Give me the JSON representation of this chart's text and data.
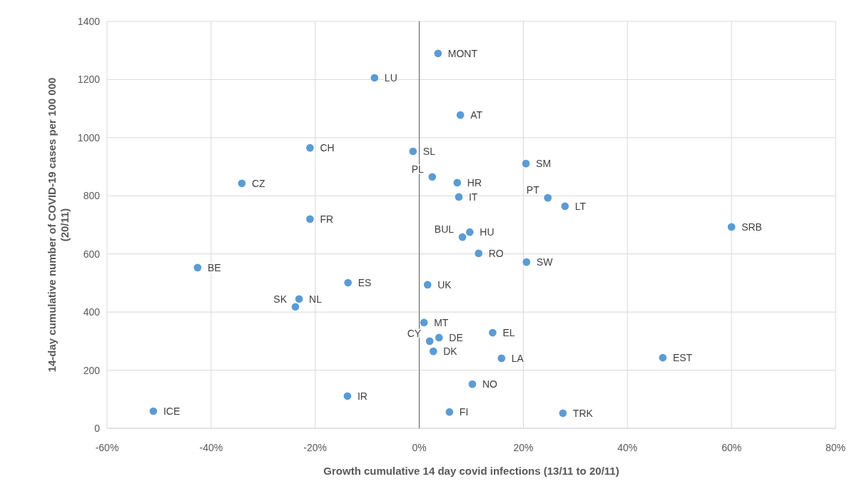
{
  "chart_data": {
    "type": "scatter",
    "xlabel": "Growth cumulative  14 day covid infections (13/11 to 20/11)",
    "ylabel": "14-day cumulative number of COVID-19 cases per 100 000 (20/11)",
    "x": [
      3.6,
      -8.6,
      7.9,
      -21.0,
      -1.2,
      20.5,
      7.3,
      2.5,
      -34.1,
      7.6,
      24.7,
      28.0,
      -21.0,
      60.0,
      9.7,
      8.3,
      11.4,
      20.6,
      -42.6,
      -13.7,
      1.6,
      -23.1,
      -23.8,
      0.9,
      3.8,
      2.0,
      14.1,
      2.7,
      15.8,
      46.8,
      10.2,
      -13.8,
      -51.1,
      5.8,
      27.6
    ],
    "series": [
      {
        "color": "#5b9bd5",
        "values": [
          1290,
          1206,
          1078,
          965,
          953,
          911,
          845,
          865,
          843,
          796,
          793,
          764,
          720,
          693,
          675,
          658,
          602,
          572,
          553,
          501,
          494,
          445,
          418,
          364,
          312,
          300,
          329,
          265,
          241,
          243,
          152,
          111,
          59,
          56,
          52
        ]
      }
    ],
    "annotations": [
      {
        "text": "MONT",
        "x": 3.6,
        "y": 1290
      },
      {
        "text": "LU",
        "x": -8.6,
        "y": 1206
      },
      {
        "text": "AT",
        "x": 7.9,
        "y": 1078
      },
      {
        "text": "CH",
        "x": -21.0,
        "y": 965
      },
      {
        "text": "SL",
        "x": -1.2,
        "y": 953
      },
      {
        "text": "SM",
        "x": 20.5,
        "y": 911
      },
      {
        "text": "HR",
        "x": 7.3,
        "y": 845
      },
      {
        "text": "PL",
        "x": 2.5,
        "y": 865
      },
      {
        "text": "CZ",
        "x": -34.1,
        "y": 843
      },
      {
        "text": "IT",
        "x": 7.6,
        "y": 796
      },
      {
        "text": "PT",
        "x": 24.7,
        "y": 793
      },
      {
        "text": "LT",
        "x": 28.0,
        "y": 764
      },
      {
        "text": "FR",
        "x": -21.0,
        "y": 720
      },
      {
        "text": "SRB",
        "x": 60.0,
        "y": 693
      },
      {
        "text": "HU",
        "x": 9.7,
        "y": 675
      },
      {
        "text": "BUL",
        "x": 8.3,
        "y": 658
      },
      {
        "text": "RO",
        "x": 11.4,
        "y": 602
      },
      {
        "text": "SW",
        "x": 20.6,
        "y": 572
      },
      {
        "text": "BE",
        "x": -42.6,
        "y": 553
      },
      {
        "text": "ES",
        "x": -13.7,
        "y": 501
      },
      {
        "text": "UK",
        "x": 1.6,
        "y": 494
      },
      {
        "text": "NL",
        "x": -23.1,
        "y": 445
      },
      {
        "text": "SK",
        "x": -23.8,
        "y": 418
      },
      {
        "text": "MT",
        "x": 0.9,
        "y": 364
      },
      {
        "text": "DE",
        "x": 3.8,
        "y": 312
      },
      {
        "text": "CY",
        "x": 2.0,
        "y": 300
      },
      {
        "text": "EL",
        "x": 14.1,
        "y": 329
      },
      {
        "text": "DK",
        "x": 2.7,
        "y": 265
      },
      {
        "text": "LA",
        "x": 15.8,
        "y": 241
      },
      {
        "text": "EST",
        "x": 46.8,
        "y": 243
      },
      {
        "text": "NO",
        "x": 10.2,
        "y": 152
      },
      {
        "text": "IR",
        "x": -13.8,
        "y": 111
      },
      {
        "text": "ICE",
        "x": -51.1,
        "y": 59
      },
      {
        "text": "FI",
        "x": 5.8,
        "y": 56
      },
      {
        "text": "TRK",
        "x": 27.6,
        "y": 52
      }
    ],
    "xlim": [
      -60,
      80
    ],
    "xticks": [
      {
        "value": -60,
        "label": "-60%"
      },
      {
        "value": -40,
        "label": "-40%"
      },
      {
        "value": -20,
        "label": "-20%"
      },
      {
        "value": 0,
        "label": "0%"
      },
      {
        "value": 20,
        "label": "20%"
      },
      {
        "value": 40,
        "label": "40%"
      },
      {
        "value": 60,
        "label": "60%"
      },
      {
        "value": 80,
        "label": "80%"
      }
    ],
    "ylim": [
      0,
      1400
    ],
    "yticks": [
      0,
      200,
      400,
      600,
      800,
      1000,
      1200,
      1400
    ],
    "ref_lines": [
      {
        "axis": "x",
        "value": 0,
        "color": "#595959"
      }
    ],
    "grid": true,
    "marker": "circle"
  }
}
